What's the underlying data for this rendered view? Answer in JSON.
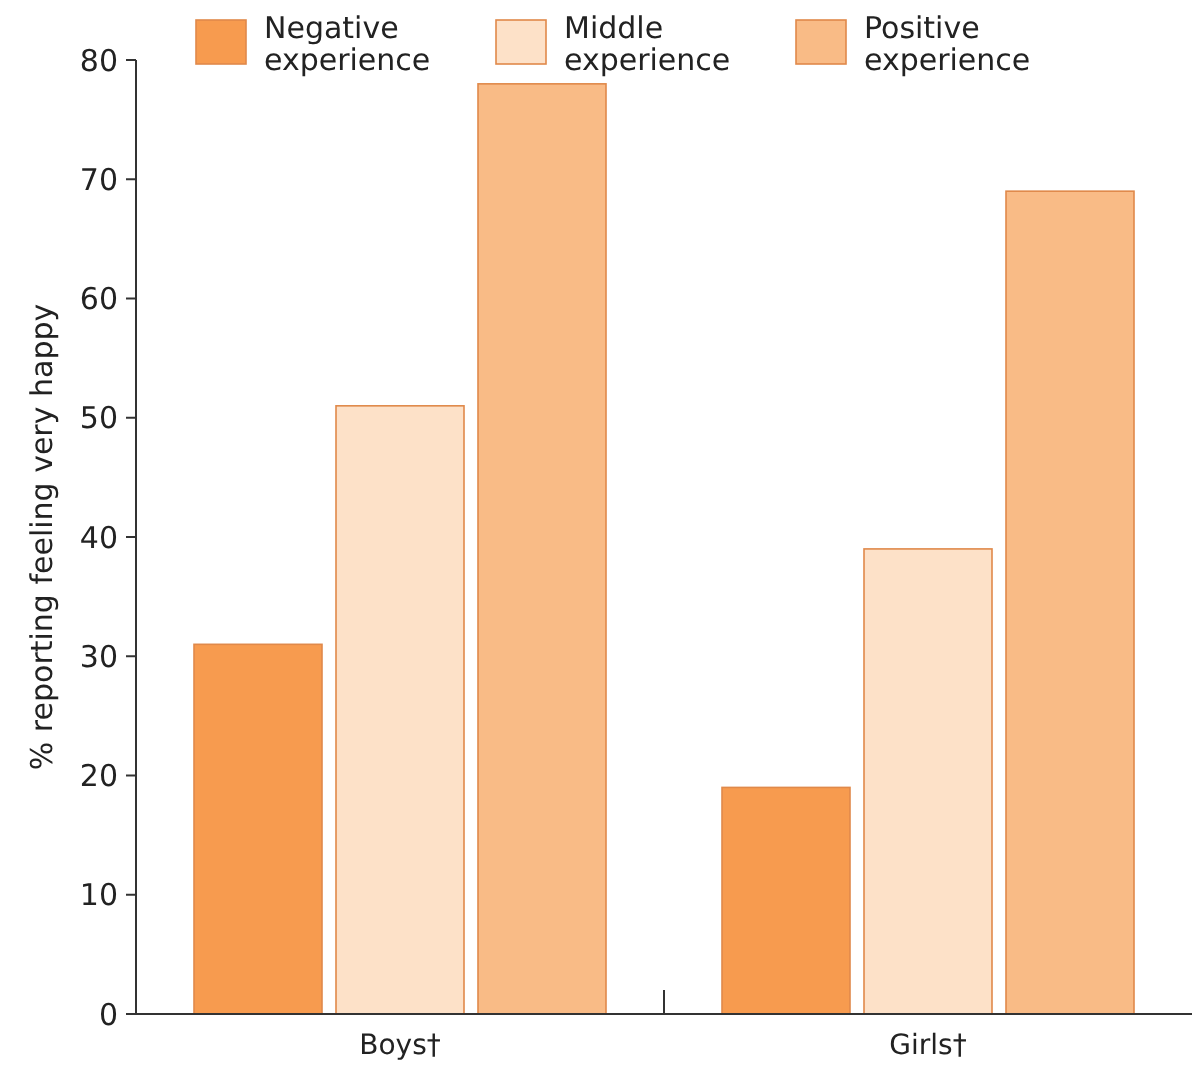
{
  "chart_data": {
    "type": "bar",
    "categories": [
      "Boys†",
      "Girls†"
    ],
    "series": [
      {
        "name": "Negative experience",
        "color": "#f79b4f",
        "values": [
          31,
          19
        ]
      },
      {
        "name": "Middle experience",
        "color": "#fde1c8",
        "values": [
          51,
          39
        ]
      },
      {
        "name": "Positive experience",
        "color": "#f9bb86",
        "values": [
          78,
          69
        ]
      }
    ],
    "ylabel": "% reporting feeling very happy",
    "ylim": [
      0,
      80
    ],
    "yticks": [
      0,
      10,
      20,
      30,
      40,
      50,
      60,
      70,
      80
    ],
    "grid": false,
    "legend": "top"
  }
}
